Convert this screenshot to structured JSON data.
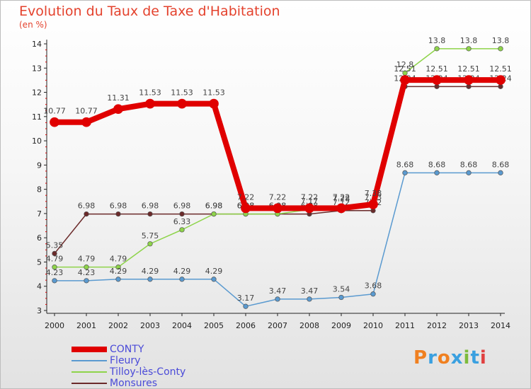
{
  "title": "Evolution du Taux de Taxe d'Habitation",
  "unit": "(en %)",
  "logo": {
    "text": "Proxiti",
    "colors": [
      "#f08020",
      "#3aa0e0",
      "#f08020",
      "#3aa0e0",
      "#7dbb3c",
      "#3aa0e0",
      "#e04040"
    ]
  },
  "chart_data": {
    "type": "line",
    "x": [
      2000,
      2001,
      2002,
      2003,
      2004,
      2005,
      2006,
      2007,
      2008,
      2009,
      2010,
      2011,
      2012,
      2013,
      2014
    ],
    "ylim": [
      3,
      14
    ],
    "yticks": [
      3,
      4,
      5,
      6,
      7,
      8,
      9,
      10,
      11,
      12,
      13,
      14
    ],
    "grid": false,
    "legend": "bottom-left",
    "series": [
      {
        "name": "Monsures",
        "color": "#6b2a2a",
        "width": 1.5,
        "values": [
          5.35,
          6.98,
          6.98,
          6.98,
          6.98,
          6.98,
          6.98,
          6.98,
          6.98,
          7.12,
          7.12,
          12.24,
          12.24,
          12.24,
          12.24
        ],
        "labels": [
          "5.35",
          "6.98",
          "6.98",
          "6.98",
          "6.98",
          "6.98",
          "6.98",
          "6.98",
          "6.98",
          "7.12",
          "7.12",
          "12.24",
          "12.24",
          "12.24",
          "12.24"
        ]
      },
      {
        "name": "Tilloy-lès-Conty",
        "color": "#8ed44a",
        "width": 1.5,
        "values": [
          4.79,
          4.79,
          4.79,
          5.75,
          6.33,
          6.98,
          6.98,
          6.98,
          7.17,
          7.28,
          7.33,
          12.8,
          13.8,
          13.8,
          13.8
        ],
        "labels": [
          "4.79",
          "4.79",
          "4.79",
          "5.75",
          "6.33",
          "6.98",
          "6.98",
          "6.98",
          "7.17",
          "7.28",
          "7.33",
          "12.8",
          "13.8",
          "13.8",
          "13.8"
        ]
      },
      {
        "name": "Fleury",
        "color": "#5a9ad0",
        "width": 1.5,
        "values": [
          4.23,
          4.23,
          4.29,
          4.29,
          4.29,
          4.29,
          3.17,
          3.47,
          3.47,
          3.54,
          3.68,
          8.68,
          8.68,
          8.68,
          8.68
        ],
        "labels": [
          "4.23",
          "4.23",
          "4.29",
          "4.29",
          "4.29",
          "4.29",
          "3.17",
          "3.47",
          "3.47",
          "3.54",
          "3.68",
          "8.68",
          "8.68",
          "8.68",
          "8.68"
        ]
      },
      {
        "name": "CONTY",
        "color": "#e00000",
        "width": 8,
        "values": [
          10.77,
          10.77,
          11.31,
          11.53,
          11.53,
          11.53,
          7.22,
          7.22,
          7.22,
          7.22,
          7.38,
          12.51,
          12.51,
          12.51,
          12.51
        ],
        "labels": [
          "10.77",
          "10.77",
          "11.31",
          "11.53",
          "11.53",
          "11.53",
          "7.22",
          "7.22",
          "7.22",
          "7.22",
          "7.38",
          "12.51",
          "12.51",
          "12.51",
          "12.51"
        ]
      }
    ]
  }
}
